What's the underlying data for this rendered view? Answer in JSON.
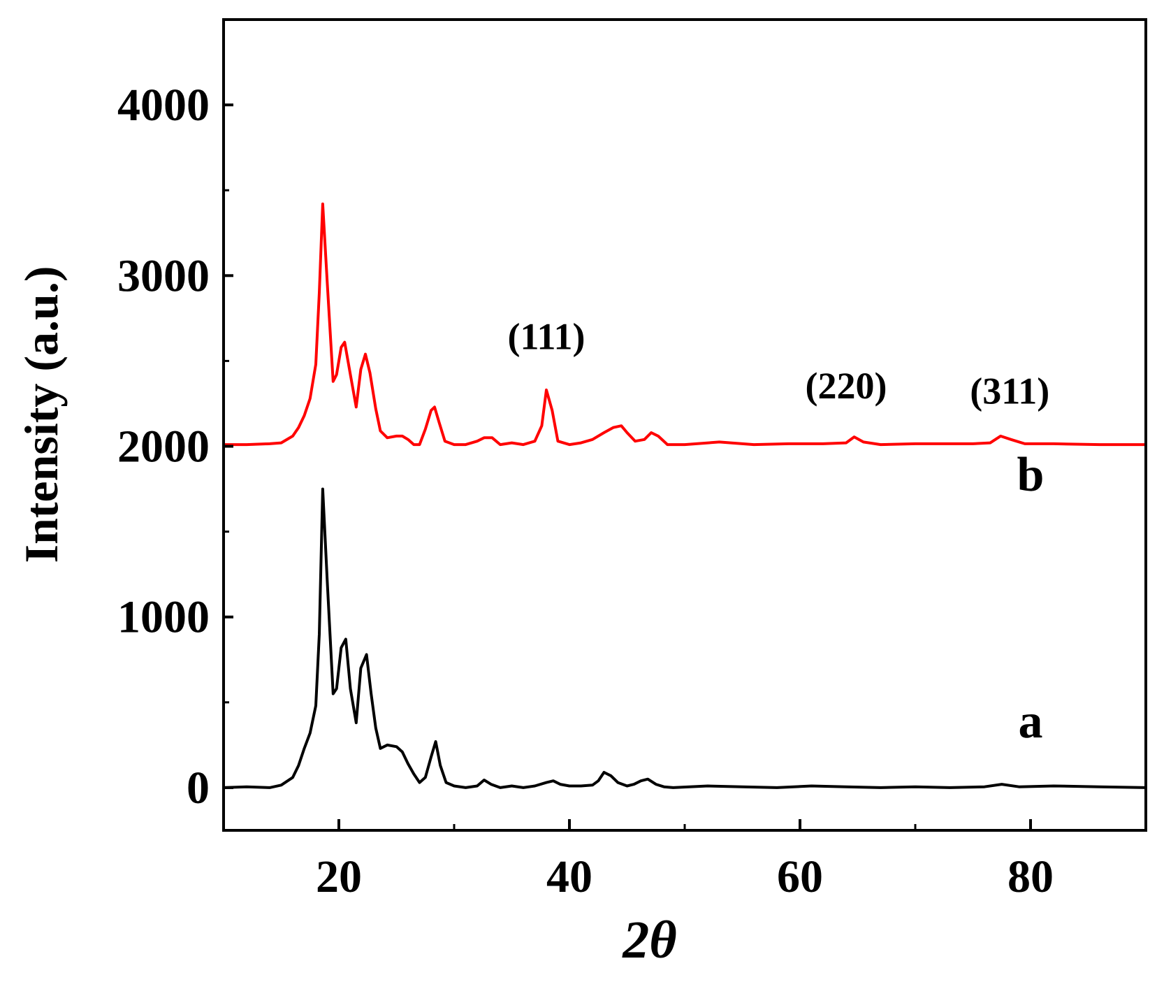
{
  "chart_data": {
    "type": "line",
    "title": "",
    "xlabel": "2θ",
    "ylabel": "Intensity (a.u.)",
    "xlim": [
      10,
      90
    ],
    "ylim": [
      -250,
      4500
    ],
    "x_ticks": [
      20,
      40,
      60,
      80
    ],
    "x_tick_labels": [
      "20",
      "40",
      "60",
      "80"
    ],
    "x_minor_ticks": [
      30,
      50,
      70
    ],
    "y_ticks": [
      0,
      1000,
      2000,
      3000,
      4000
    ],
    "y_tick_labels": [
      "0",
      "1000",
      "2000",
      "3000",
      "4000"
    ],
    "y_minor_ticks": [
      500,
      1500,
      2500,
      3500
    ],
    "grid": false,
    "series": [
      {
        "name": "a",
        "color": "#000000",
        "x": [
          10,
          12,
          14,
          15,
          16,
          16.5,
          17,
          17.5,
          18,
          18.3,
          18.6,
          19,
          19.5,
          19.8,
          20.2,
          20.6,
          21,
          21.5,
          21.9,
          22.4,
          22.8,
          23.2,
          23.6,
          24.2,
          25,
          25.5,
          26,
          26.5,
          27,
          27.5,
          28,
          28.4,
          28.8,
          29.3,
          30,
          31,
          32,
          32.6,
          33.2,
          34,
          35,
          36,
          37,
          38,
          38.6,
          39.2,
          40,
          41,
          42,
          42.5,
          43,
          43.6,
          44.2,
          45,
          45.6,
          46.2,
          46.8,
          47.5,
          48.2,
          49,
          52,
          55,
          58,
          61,
          64,
          67,
          70,
          73,
          76,
          77.5,
          79,
          82,
          86,
          90
        ],
        "y": [
          0,
          5,
          0,
          15,
          60,
          130,
          230,
          320,
          480,
          900,
          1750,
          1200,
          550,
          580,
          820,
          870,
          580,
          380,
          700,
          780,
          550,
          350,
          230,
          250,
          240,
          210,
          140,
          80,
          30,
          60,
          180,
          270,
          130,
          30,
          10,
          0,
          10,
          45,
          20,
          0,
          10,
          0,
          10,
          30,
          40,
          20,
          10,
          10,
          15,
          40,
          90,
          70,
          30,
          10,
          20,
          40,
          50,
          20,
          5,
          0,
          10,
          5,
          0,
          10,
          5,
          0,
          5,
          0,
          5,
          20,
          5,
          10,
          5,
          0
        ]
      },
      {
        "name": "b",
        "color": "#ff0000",
        "x": [
          10,
          12,
          14,
          15,
          16,
          16.5,
          17,
          17.5,
          18,
          18.3,
          18.6,
          19,
          19.5,
          19.8,
          20.2,
          20.5,
          21,
          21.5,
          21.9,
          22.3,
          22.7,
          23.2,
          23.6,
          24.2,
          25,
          25.5,
          26,
          26.5,
          27,
          27.5,
          28,
          28.3,
          28.7,
          29.2,
          30,
          31,
          32,
          32.6,
          33.3,
          34,
          35,
          36,
          37,
          37.6,
          38,
          38.5,
          39,
          40,
          41,
          42,
          43,
          43.8,
          44.5,
          45,
          45.7,
          46.5,
          47.1,
          47.7,
          48.5,
          50,
          53,
          56,
          59,
          62,
          64,
          64.7,
          65.5,
          67,
          70,
          73,
          75,
          76.5,
          77.4,
          78.3,
          79.5,
          82,
          86,
          90
        ],
        "y": [
          2010,
          2010,
          2015,
          2020,
          2060,
          2110,
          2180,
          2280,
          2480,
          2900,
          3420,
          2950,
          2380,
          2420,
          2580,
          2610,
          2420,
          2230,
          2450,
          2540,
          2430,
          2220,
          2090,
          2050,
          2060,
          2060,
          2040,
          2010,
          2010,
          2100,
          2210,
          2230,
          2140,
          2030,
          2010,
          2010,
          2030,
          2050,
          2050,
          2010,
          2020,
          2010,
          2030,
          2120,
          2330,
          2210,
          2030,
          2010,
          2020,
          2040,
          2080,
          2110,
          2120,
          2080,
          2030,
          2040,
          2080,
          2060,
          2010,
          2010,
          2025,
          2010,
          2015,
          2015,
          2020,
          2055,
          2025,
          2010,
          2015,
          2015,
          2015,
          2020,
          2060,
          2040,
          2015,
          2015,
          2010,
          2010
        ]
      }
    ],
    "annotations": [
      {
        "text": "(111)",
        "x": 38,
        "y": 2570
      },
      {
        "text": "(220)",
        "x": 64,
        "y": 2280
      },
      {
        "text": "(311)",
        "x": 78.2,
        "y": 2250
      },
      {
        "text": "b",
        "x": 80,
        "y": 1740
      },
      {
        "text": "a",
        "x": 80,
        "y": 295
      }
    ]
  }
}
